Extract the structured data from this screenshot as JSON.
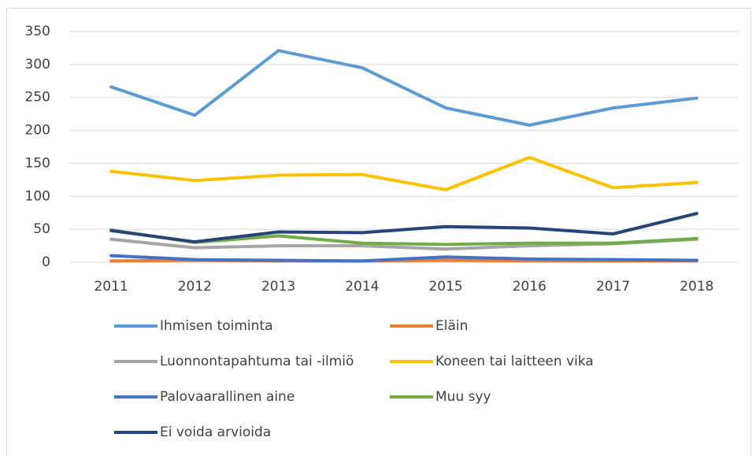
{
  "chart_data": {
    "type": "line",
    "categories": [
      "2011",
      "2012",
      "2013",
      "2014",
      "2015",
      "2016",
      "2017",
      "2018"
    ],
    "series": [
      {
        "name": "Ihmisen toiminta",
        "color": "#5b9bd5",
        "values": [
          266,
          223,
          321,
          295,
          234,
          208,
          234,
          249
        ]
      },
      {
        "name": "Eläin",
        "color": "#ed7d31",
        "values": [
          2,
          3,
          2,
          2,
          3,
          2,
          2,
          2
        ]
      },
      {
        "name": "Luonnontapahtuma tai -ilmiö",
        "color": "#a5a5a5",
        "values": [
          35,
          22,
          25,
          25,
          20,
          25,
          28,
          35
        ]
      },
      {
        "name": "Koneen tai laitteen vika",
        "color": "#ffc000",
        "values": [
          138,
          124,
          132,
          133,
          110,
          159,
          113,
          121
        ]
      },
      {
        "name": "Palovaarallinen aine",
        "color": "#4472c4",
        "values": [
          10,
          4,
          3,
          2,
          8,
          5,
          4,
          3
        ]
      },
      {
        "name": "Muu syy",
        "color": "#70ad47",
        "values": [
          49,
          30,
          40,
          29,
          27,
          29,
          29,
          36
        ]
      },
      {
        "name": "Ei voida arvioida",
        "color": "#264478",
        "values": [
          48,
          31,
          46,
          45,
          54,
          52,
          43,
          74
        ]
      }
    ],
    "ylim": [
      0,
      350
    ],
    "yticks": [
      0,
      50,
      100,
      150,
      200,
      250,
      300,
      350
    ],
    "grid": true,
    "legend": "bottom"
  }
}
